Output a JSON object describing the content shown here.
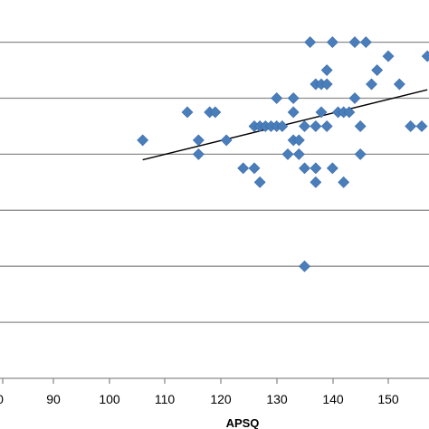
{
  "chart_data": {
    "type": "scatter",
    "title": "",
    "xlabel": "APSQ",
    "ylabel": "",
    "x_ticks": [
      "0",
      "90",
      "100",
      "110",
      "120",
      "130",
      "140",
      "150"
    ],
    "xlim": [
      78,
      157
    ],
    "ylim": [
      0,
      7
    ],
    "gridlines_y": [
      1,
      2,
      3,
      4,
      5,
      6
    ],
    "grid": "horizontal",
    "legend": "none",
    "point_color": "#4a7ebb",
    "series": [
      {
        "marker": "diamond",
        "points": [
          [
            106,
            4.25
          ],
          [
            114,
            4.75
          ],
          [
            116,
            4.25
          ],
          [
            116,
            4.0
          ],
          [
            118,
            4.75
          ],
          [
            119,
            4.75
          ],
          [
            121,
            4.25
          ],
          [
            124,
            3.75
          ],
          [
            126,
            3.75
          ],
          [
            126,
            4.5
          ],
          [
            127,
            4.5
          ],
          [
            127,
            3.5
          ],
          [
            128,
            4.5
          ],
          [
            129,
            4.5
          ],
          [
            130,
            4.5
          ],
          [
            130,
            5.0
          ],
          [
            131,
            4.5
          ],
          [
            132,
            4.0
          ],
          [
            133,
            5.0
          ],
          [
            133,
            4.75
          ],
          [
            133,
            4.25
          ],
          [
            134,
            4.25
          ],
          [
            134,
            4.0
          ],
          [
            135,
            4.5
          ],
          [
            135,
            3.75
          ],
          [
            135,
            2.0
          ],
          [
            136,
            6.0
          ],
          [
            137,
            5.25
          ],
          [
            137,
            4.5
          ],
          [
            137,
            3.75
          ],
          [
            137,
            3.5
          ],
          [
            138,
            5.25
          ],
          [
            138,
            4.75
          ],
          [
            139,
            5.5
          ],
          [
            139,
            5.25
          ],
          [
            139,
            4.5
          ],
          [
            140,
            6.0
          ],
          [
            140,
            3.75
          ],
          [
            141,
            4.75
          ],
          [
            142,
            4.75
          ],
          [
            142,
            3.5
          ],
          [
            143,
            4.75
          ],
          [
            144,
            6.0
          ],
          [
            144,
            5.0
          ],
          [
            145,
            4.5
          ],
          [
            145,
            4.0
          ],
          [
            146,
            6.0
          ],
          [
            147,
            5.25
          ],
          [
            148,
            5.5
          ],
          [
            150,
            5.75
          ],
          [
            152,
            5.25
          ],
          [
            154,
            4.5
          ],
          [
            156,
            4.5
          ],
          [
            157,
            5.75
          ]
        ]
      }
    ],
    "trendline": {
      "x": [
        106,
        157
      ],
      "y": [
        3.9,
        5.15
      ]
    }
  }
}
